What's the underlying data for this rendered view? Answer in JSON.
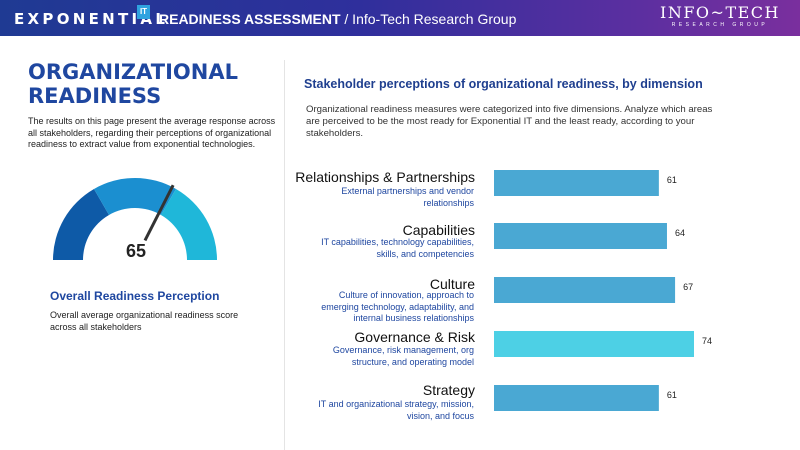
{
  "header": {
    "brand": "EXPONENTIAL",
    "brand_badge": "IT",
    "assessment": "READINESS ASSESSMENT",
    "org": " / Info-Tech Research Group",
    "logo_main": "INFO~TECH",
    "logo_sub": "RESEARCH GROUP"
  },
  "left": {
    "title": "ORGANIZATIONAL READINESS",
    "intro": "The results on this page present the average response across all stakeholders, regarding their perceptions of organizational readiness to extract value from exponential technologies.",
    "gauge_value": "65",
    "gauge_fraction": 0.65,
    "gauge_colors": [
      "#0e5aa7",
      "#1b8fd0",
      "#1fb7d9"
    ],
    "needle_color": "#333333",
    "orp_title": "Overall Readiness Perception",
    "orp_desc": "Overall average organizational readiness score across all stakeholders"
  },
  "right": {
    "title": "Stakeholder perceptions of organizational readiness, by dimension",
    "desc": "Organizational readiness measures were categorized into five dimensions. Analyze which areas are perceived to be the most ready for Exponential IT and the least ready, according to your stakeholders."
  },
  "chart_data": {
    "type": "bar",
    "orientation": "horizontal",
    "categories": [
      "Relationships & Partnerships",
      "Capabilities",
      "Culture",
      "Governance & Risk",
      "Strategy"
    ],
    "descriptions": [
      "External partnerships and vendor relationships",
      "IT capabilities, technology capabilities, skills, and competencies",
      "Culture of innovation, approach to emerging technology, adaptability, and internal business relationships",
      "Governance, risk management, org structure, and operating model",
      "IT and organizational strategy, mission, vision, and focus"
    ],
    "values": [
      61,
      64,
      67,
      74,
      61
    ],
    "value_labels": [
      "61",
      "64",
      "67",
      "74",
      "61"
    ],
    "bar_color": "#4aa8d3",
    "highlight_color": "#4dd0e5",
    "highlight_index": 3
  }
}
